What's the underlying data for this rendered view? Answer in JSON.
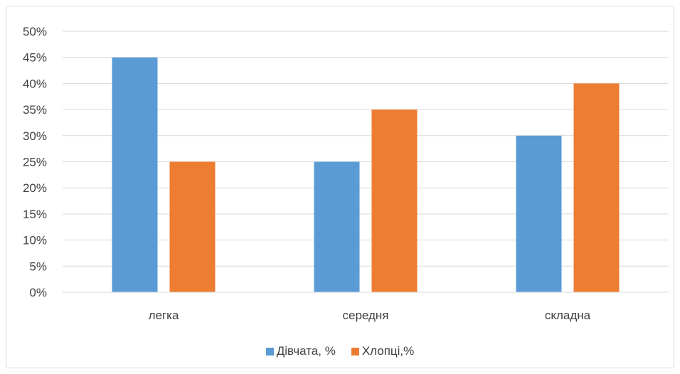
{
  "chart_data": {
    "type": "bar",
    "categories": [
      "легка",
      "середня",
      "складна"
    ],
    "series": [
      {
        "name": "Дівчата, %",
        "values": [
          45,
          25,
          30
        ],
        "color": "#5b9bd5"
      },
      {
        "name": "Хлопці,%",
        "values": [
          25,
          35,
          40
        ],
        "color": "#ed7d31"
      }
    ],
    "ylim": [
      0,
      50
    ],
    "yticks": [
      "0%",
      "5%",
      "10%",
      "15%",
      "20%",
      "25%",
      "30%",
      "35%",
      "40%",
      "45%",
      "50%"
    ],
    "grid": true,
    "legend": "bottom",
    "title": "",
    "xlabel": "",
    "ylabel": ""
  }
}
